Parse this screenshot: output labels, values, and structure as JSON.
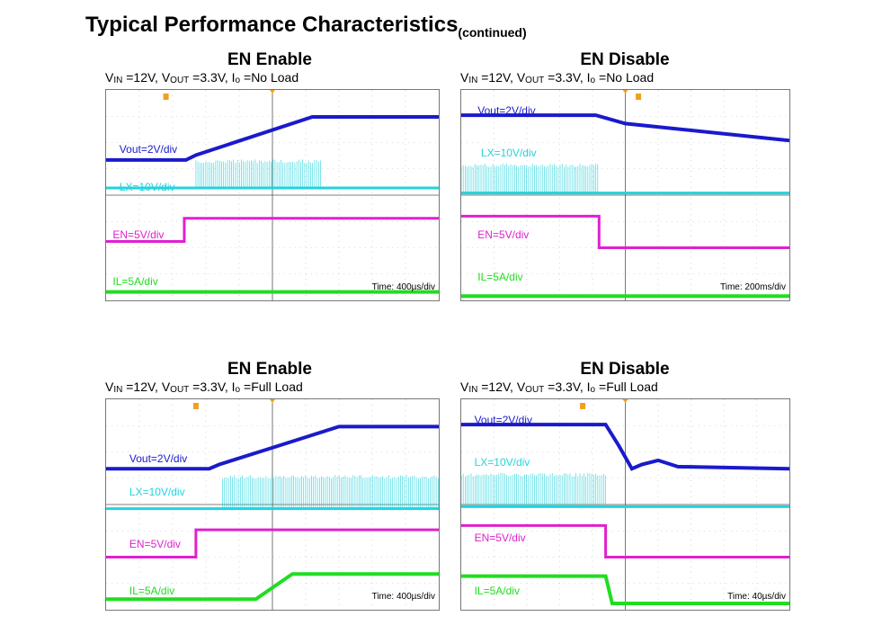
{
  "heading": {
    "title": "Typical Performance Characteristics",
    "suffix": "(continued)"
  },
  "panels": [
    {
      "title": "EN Enable",
      "vin": "12V",
      "vout": "3.3V",
      "io": "No Load",
      "labels": {
        "vout": "Vout=2V/div",
        "lx": "LX=10V/div",
        "en": "EN=5V/div",
        "il": "IL=5A/div"
      },
      "time": "Time: 400µs/div"
    },
    {
      "title": "EN Disable",
      "vin": "12V",
      "vout": "3.3V",
      "io": "No Load",
      "labels": {
        "vout": "Vout=2V/div",
        "lx": "LX=10V/div",
        "en": "EN=5V/div",
        "il": "IL=5A/div"
      },
      "time": "Time: 200ms/div"
    },
    {
      "title": "EN Enable",
      "vin": "12V",
      "vout": "3.3V",
      "io": "Full Load",
      "labels": {
        "vout": "Vout=2V/div",
        "lx": "LX=10V/div",
        "en": "EN=5V/div",
        "il": "IL=5A/div"
      },
      "time": "Time: 400µs/div"
    },
    {
      "title": "EN Disable",
      "vin": "12V",
      "vout": "3.3V",
      "io": "Full Load",
      "labels": {
        "vout": "Vout=2V/div",
        "lx": "LX=10V/div",
        "en": "EN=5V/div",
        "il": "IL=5A/div"
      },
      "time": "Time: 40µs/div"
    }
  ],
  "colors": {
    "vout": "#1a1acc",
    "lx": "#22d3dd",
    "en": "#e020d0",
    "il": "#20dd20",
    "trigger": "#f0a020"
  }
}
